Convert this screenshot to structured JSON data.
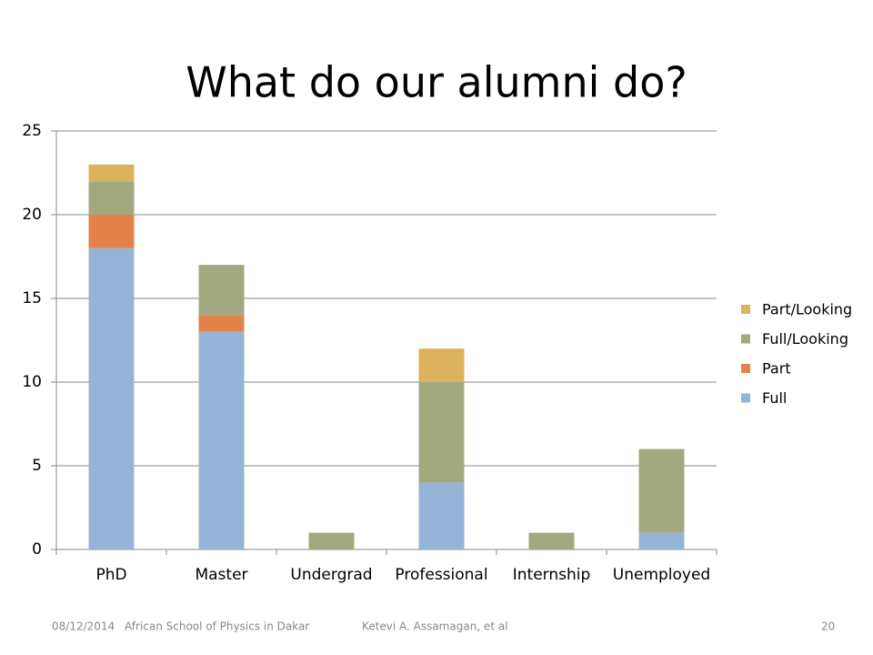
{
  "chart_data": {
    "type": "stacked_bar",
    "title": "What do our alumni do?",
    "categories": [
      "PhD",
      "Master",
      "Undergrad",
      "Professional",
      "Internship",
      "Unemployed"
    ],
    "series": [
      {
        "name": "Full",
        "color": "#95b3d7",
        "values": [
          18,
          13,
          0,
          4,
          0,
          1
        ]
      },
      {
        "name": "Part",
        "color": "#e3824a",
        "values": [
          2,
          1,
          0,
          0,
          0,
          0
        ]
      },
      {
        "name": "Full/Looking",
        "color": "#a3a97e",
        "values": [
          2,
          3,
          1,
          6,
          1,
          5
        ]
      },
      {
        "name": "Part/Looking",
        "color": "#dbb35d",
        "values": [
          1,
          0,
          0,
          2,
          0,
          0
        ]
      }
    ],
    "ylim": [
      0,
      25
    ],
    "yticks": [
      0,
      5,
      10,
      15,
      20,
      25
    ],
    "grid": true,
    "legend": "right"
  },
  "footer": {
    "date": "08/12/2014",
    "event": "African School of Physics in Dakar",
    "author": "Ketevi A. Assamagan, et al",
    "page": "20"
  }
}
